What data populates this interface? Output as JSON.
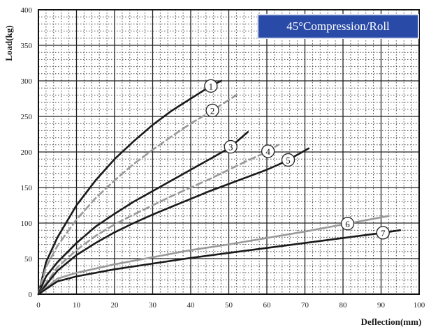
{
  "chart_data": {
    "type": "line",
    "title": "45°Compression/Roll",
    "xlabel": "Deflection(mm)",
    "ylabel": "Load(kg)",
    "xlim": [
      0,
      100
    ],
    "ylim": [
      0,
      400
    ],
    "x_ticks": [
      "0",
      "10",
      "20",
      "30",
      "40",
      "50",
      "60",
      "70",
      "80",
      "90",
      "100"
    ],
    "y_ticks": [
      "0",
      "50",
      "100",
      "150",
      "200",
      "250",
      "300",
      "350",
      "400"
    ],
    "grid": true,
    "series": [
      {
        "label": "1",
        "color": "#1a1a1a",
        "dashed": false,
        "x": [
          0,
          2,
          5,
          10,
          15,
          20,
          25,
          30,
          35,
          40,
          45,
          48
        ],
        "y": [
          0,
          45,
          80,
          125,
          160,
          190,
          215,
          238,
          258,
          275,
          292,
          300
        ]
      },
      {
        "label": "2",
        "color": "#9a9a9a",
        "dashed": true,
        "x": [
          0,
          2,
          5,
          10,
          15,
          20,
          25,
          30,
          35,
          40,
          45,
          52
        ],
        "y": [
          0,
          38,
          68,
          105,
          135,
          160,
          183,
          203,
          222,
          240,
          256,
          280
        ]
      },
      {
        "label": "3",
        "color": "#1a1a1a",
        "dashed": false,
        "x": [
          0,
          2,
          5,
          10,
          15,
          20,
          25,
          30,
          35,
          40,
          45,
          50,
          55
        ],
        "y": [
          0,
          25,
          45,
          72,
          95,
          113,
          130,
          145,
          160,
          175,
          190,
          205,
          228
        ]
      },
      {
        "label": "4",
        "color": "#9a9a9a",
        "dashed": true,
        "x": [
          0,
          5,
          10,
          15,
          20,
          25,
          30,
          35,
          40,
          45,
          50,
          55,
          60,
          63
        ],
        "y": [
          0,
          38,
          62,
          82,
          98,
          112,
          125,
          138,
          150,
          162,
          175,
          188,
          200,
          210
        ]
      },
      {
        "label": "5",
        "color": "#1a1a1a",
        "dashed": false,
        "x": [
          0,
          5,
          10,
          15,
          20,
          25,
          30,
          35,
          40,
          45,
          50,
          55,
          60,
          65,
          71
        ],
        "y": [
          0,
          33,
          55,
          72,
          87,
          100,
          112,
          123,
          134,
          145,
          155,
          165,
          175,
          187,
          205
        ]
      },
      {
        "label": "6",
        "color": "#9a9a9a",
        "dashed": false,
        "x": [
          0,
          5,
          10,
          20,
          30,
          40,
          50,
          60,
          70,
          80,
          92
        ],
        "y": [
          0,
          22,
          30,
          42,
          52,
          62,
          70,
          79,
          88,
          98,
          110
        ]
      },
      {
        "label": "7",
        "color": "#1a1a1a",
        "dashed": false,
        "x": [
          0,
          5,
          10,
          20,
          30,
          40,
          50,
          60,
          70,
          80,
          90,
          95
        ],
        "y": [
          0,
          18,
          25,
          35,
          43,
          51,
          58,
          65,
          72,
          79,
          86,
          90
        ]
      }
    ]
  }
}
